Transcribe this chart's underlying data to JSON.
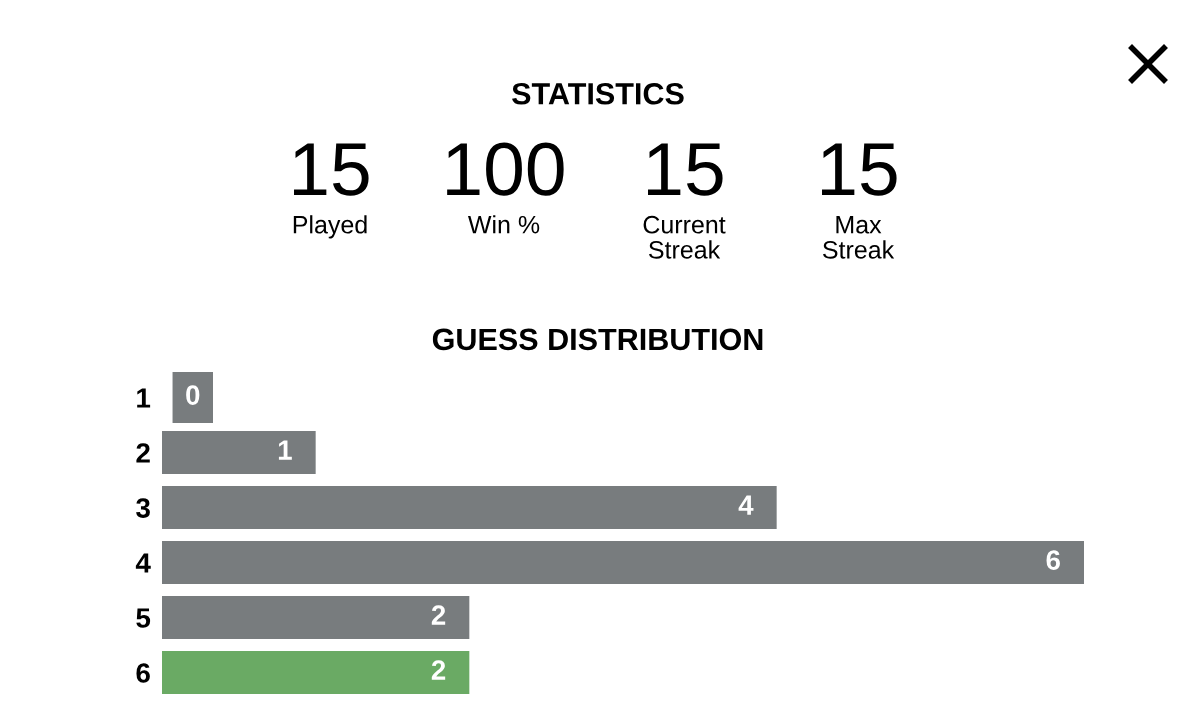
{
  "chart_data": [
    {
      "type": "other",
      "title": "STATISTICS",
      "categories": [
        "Played",
        "Win %",
        "Current\nStreak",
        "Max\nStreak"
      ],
      "values": [
        15,
        100,
        15,
        15
      ],
      "data_labels": true
    },
    {
      "type": "bar",
      "orientation": "horizontal",
      "title": "GUESS DISTRIBUTION",
      "categories": [
        "1",
        "2",
        "3",
        "4",
        "5",
        "6"
      ],
      "values": [
        0,
        1,
        4,
        6,
        2,
        2
      ],
      "colors": [
        "#787c7e",
        "#787c7e",
        "#787c7e",
        "#787c7e",
        "#787c7e",
        "#6aaa64"
      ],
      "xlim": [
        0,
        6
      ],
      "tick_labels": "y",
      "data_labels": true
    }
  ]
}
